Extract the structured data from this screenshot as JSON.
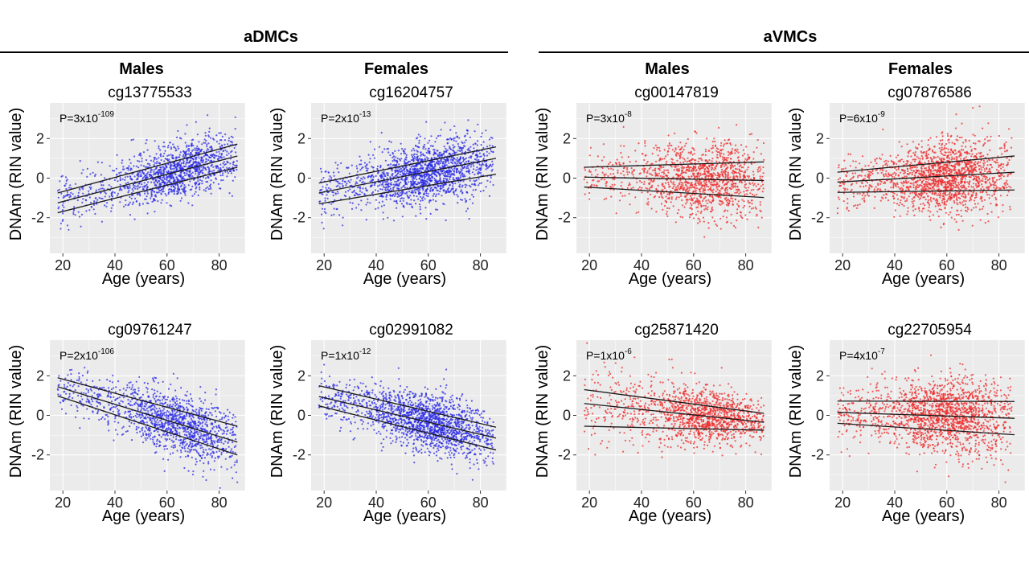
{
  "groups": [
    {
      "title": "aDMCs"
    },
    {
      "title": "aVMCs"
    }
  ],
  "column_headers": [
    "Males",
    "Females",
    "Males",
    "Females"
  ],
  "colors": {
    "aDMC": "#2a2ae6",
    "aVMC": "#ee2a2a",
    "panel_bg": "#ebebeb",
    "grid": "#ffffff",
    "line": "#1a1a1a"
  },
  "chart_data": [
    {
      "type": "scatter",
      "title": "cg13775533",
      "group": "aDMCs",
      "sex": "Males",
      "pvalue": {
        "base": "P=3x10",
        "exp": "-109"
      },
      "xlabel": "Age (years)",
      "ylabel": "DNAm (RIN value)",
      "xticks": [
        20,
        40,
        60,
        80
      ],
      "yticks": [
        -2,
        0,
        2
      ],
      "xlim": [
        15,
        90
      ],
      "ylim": [
        -3.8,
        3.8
      ],
      "grid": true,
      "points_summary": {
        "n_approx": 1350,
        "x_range": [
          18,
          87
        ],
        "density_peak_age": 65,
        "trend": "increasing",
        "spread_sd": 0.85
      },
      "fit_lines": [
        {
          "name": "upper",
          "x": [
            18,
            87
          ],
          "y": [
            -0.75,
            1.72
          ]
        },
        {
          "name": "middle",
          "x": [
            18,
            87
          ],
          "y": [
            -1.25,
            1.12
          ]
        },
        {
          "name": "lower",
          "x": [
            18,
            87
          ],
          "y": [
            -1.75,
            0.55
          ]
        }
      ]
    },
    {
      "type": "scatter",
      "title": "cg16204757",
      "group": "aDMCs",
      "sex": "Females",
      "pvalue": {
        "base": "P=2x10",
        "exp": "-13"
      },
      "xlabel": "Age (years)",
      "ylabel": "DNAm (RIN value)",
      "xticks": [
        20,
        40,
        60,
        80
      ],
      "yticks": [
        -2,
        0,
        2
      ],
      "xlim": [
        15,
        90
      ],
      "ylim": [
        -3.8,
        3.8
      ],
      "grid": true,
      "points_summary": {
        "n_approx": 1700,
        "x_range": [
          18,
          85
        ],
        "density_peak_age": 60,
        "trend": "increasing",
        "spread_sd": 0.9
      },
      "fit_lines": [
        {
          "name": "upper",
          "x": [
            18,
            86
          ],
          "y": [
            -0.25,
            1.58
          ]
        },
        {
          "name": "middle",
          "x": [
            18,
            86
          ],
          "y": [
            -0.75,
            1.0
          ]
        },
        {
          "name": "lower",
          "x": [
            18,
            86
          ],
          "y": [
            -1.3,
            0.2
          ]
        }
      ]
    },
    {
      "type": "scatter",
      "title": "cg00147819",
      "group": "aVMCs",
      "sex": "Males",
      "pvalue": {
        "base": "P=3x10",
        "exp": "-8"
      },
      "xlabel": "Age (years)",
      "ylabel": "DNAm (RIN value)",
      "xticks": [
        20,
        40,
        60,
        80
      ],
      "yticks": [
        -2,
        0,
        2
      ],
      "xlim": [
        15,
        90
      ],
      "ylim": [
        -3.8,
        3.8
      ],
      "grid": true,
      "points_summary": {
        "n_approx": 1350,
        "x_range": [
          18,
          87
        ],
        "density_peak_age": 65,
        "trend": "variance-increasing",
        "spread_sd": 0.9
      },
      "fit_lines": [
        {
          "name": "upper",
          "x": [
            18,
            87
          ],
          "y": [
            0.55,
            0.82
          ]
        },
        {
          "name": "middle",
          "x": [
            18,
            87
          ],
          "y": [
            0.05,
            -0.12
          ]
        },
        {
          "name": "lower",
          "x": [
            18,
            87
          ],
          "y": [
            -0.45,
            -0.98
          ]
        }
      ]
    },
    {
      "type": "scatter",
      "title": "cg07876586",
      "group": "aVMCs",
      "sex": "Females",
      "pvalue": {
        "base": "P=6x10",
        "exp": "-9"
      },
      "xlabel": "Age (years)",
      "ylabel": "DNAm (RIN value)",
      "xticks": [
        20,
        40,
        60,
        80
      ],
      "yticks": [
        -2,
        0,
        2
      ],
      "xlim": [
        15,
        90
      ],
      "ylim": [
        -3.8,
        3.8
      ],
      "grid": true,
      "points_summary": {
        "n_approx": 1700,
        "x_range": [
          18,
          85
        ],
        "density_peak_age": 60,
        "trend": "variance-increasing",
        "spread_sd": 0.9
      },
      "fit_lines": [
        {
          "name": "upper",
          "x": [
            18,
            86
          ],
          "y": [
            0.3,
            1.12
          ]
        },
        {
          "name": "middle",
          "x": [
            18,
            86
          ],
          "y": [
            -0.2,
            0.3
          ]
        },
        {
          "name": "lower",
          "x": [
            18,
            86
          ],
          "y": [
            -0.72,
            -0.6
          ]
        }
      ]
    },
    {
      "type": "scatter",
      "title": "cg09761247",
      "group": "aDMCs",
      "sex": "Males",
      "pvalue": {
        "base": "P=2x10",
        "exp": "-106"
      },
      "xlabel": "Age (years)",
      "ylabel": "DNAm (RIN value)",
      "xticks": [
        20,
        40,
        60,
        80
      ],
      "yticks": [
        -2,
        0,
        2
      ],
      "xlim": [
        15,
        90
      ],
      "ylim": [
        -3.8,
        3.8
      ],
      "grid": true,
      "points_summary": {
        "n_approx": 1350,
        "x_range": [
          18,
          87
        ],
        "density_peak_age": 65,
        "trend": "decreasing",
        "spread_sd": 0.85
      },
      "fit_lines": [
        {
          "name": "upper",
          "x": [
            18,
            87
          ],
          "y": [
            1.9,
            -0.55
          ]
        },
        {
          "name": "middle",
          "x": [
            18,
            87
          ],
          "y": [
            1.45,
            -1.35
          ]
        },
        {
          "name": "lower",
          "x": [
            18,
            87
          ],
          "y": [
            0.98,
            -2.0
          ]
        }
      ]
    },
    {
      "type": "scatter",
      "title": "cg02991082",
      "group": "aDMCs",
      "sex": "Females",
      "pvalue": {
        "base": "P=1x10",
        "exp": "-12"
      },
      "xlabel": "Age (years)",
      "ylabel": "DNAm (RIN value)",
      "xticks": [
        20,
        40,
        60,
        80
      ],
      "yticks": [
        -2,
        0,
        2
      ],
      "xlim": [
        15,
        90
      ],
      "ylim": [
        -3.8,
        3.8
      ],
      "grid": true,
      "points_summary": {
        "n_approx": 1700,
        "x_range": [
          18,
          85
        ],
        "density_peak_age": 60,
        "trend": "decreasing",
        "spread_sd": 0.9
      },
      "fit_lines": [
        {
          "name": "upper",
          "x": [
            18,
            86
          ],
          "y": [
            1.5,
            -0.6
          ]
        },
        {
          "name": "middle",
          "x": [
            18,
            86
          ],
          "y": [
            0.95,
            -1.15
          ]
        },
        {
          "name": "lower",
          "x": [
            18,
            86
          ],
          "y": [
            0.48,
            -1.75
          ]
        }
      ]
    },
    {
      "type": "scatter",
      "title": "cg25871420",
      "group": "aVMCs",
      "sex": "Males",
      "pvalue": {
        "base": "P=1x10",
        "exp": "-6"
      },
      "xlabel": "Age (years)",
      "ylabel": "DNAm (RIN value)",
      "xticks": [
        20,
        40,
        60,
        80
      ],
      "yticks": [
        -2,
        0,
        2
      ],
      "xlim": [
        15,
        90
      ],
      "ylim": [
        -3.8,
        3.8
      ],
      "grid": true,
      "points_summary": {
        "n_approx": 1350,
        "x_range": [
          18,
          87
        ],
        "density_peak_age": 65,
        "trend": "variance-decreasing",
        "spread_sd": 0.85
      },
      "fit_lines": [
        {
          "name": "upper",
          "x": [
            18,
            87
          ],
          "y": [
            1.3,
            0.1
          ]
        },
        {
          "name": "middle",
          "x": [
            18,
            87
          ],
          "y": [
            0.6,
            -0.35
          ]
        },
        {
          "name": "lower",
          "x": [
            18,
            87
          ],
          "y": [
            -0.55,
            -0.75
          ]
        }
      ]
    },
    {
      "type": "scatter",
      "title": "cg22705954",
      "group": "aVMCs",
      "sex": "Females",
      "pvalue": {
        "base": "P=4x10",
        "exp": "-7"
      },
      "xlabel": "Age (years)",
      "ylabel": "DNAm (RIN value)",
      "xticks": [
        20,
        40,
        60,
        80
      ],
      "yticks": [
        -2,
        0,
        2
      ],
      "xlim": [
        15,
        90
      ],
      "ylim": [
        -3.8,
        3.8
      ],
      "grid": true,
      "points_summary": {
        "n_approx": 1700,
        "x_range": [
          18,
          85
        ],
        "density_peak_age": 60,
        "trend": "variance-increasing",
        "spread_sd": 0.9
      },
      "fit_lines": [
        {
          "name": "upper",
          "x": [
            18,
            86
          ],
          "y": [
            0.72,
            0.7
          ]
        },
        {
          "name": "middle",
          "x": [
            18,
            86
          ],
          "y": [
            0.15,
            -0.15
          ]
        },
        {
          "name": "lower",
          "x": [
            18,
            86
          ],
          "y": [
            -0.4,
            -0.98
          ]
        }
      ]
    }
  ]
}
